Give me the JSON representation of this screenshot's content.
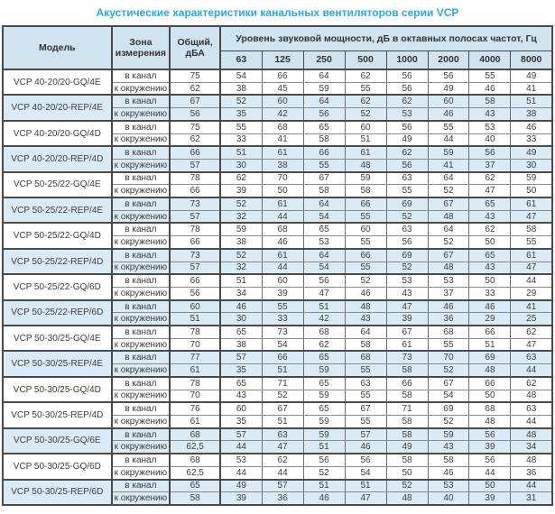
{
  "title": "Акустические характеристики канальных вентиляторов  серии VCP",
  "colors": {
    "title_accent": "#29a9e1",
    "header_bg": "#cfe3f1",
    "shaded_row_bg": "#d9ebf7",
    "border_dark": "#4a4a4a",
    "border_light": "#8b8b8b"
  },
  "table": {
    "header": {
      "model": "Модель",
      "zone": "Зона измерения",
      "total": "Общий, дБА",
      "octave_title": "Уровень звуковой мощности, дБ в октавных полосах частот, Гц",
      "frequencies": [
        "63",
        "125",
        "250",
        "500",
        "1000",
        "2000",
        "4000",
        "8000"
      ]
    },
    "zone_labels": {
      "duct": "в канал",
      "ambient": "к окружению"
    },
    "models": [
      {
        "name": "VCP 40-20/20-GQ/4E",
        "shaded": false,
        "rows": [
          {
            "zone": "в канал",
            "total": "75",
            "bands": [
              "54",
              "66",
              "64",
              "62",
              "56",
              "56",
              "55",
              "49"
            ]
          },
          {
            "zone": "к окружению",
            "total": "62",
            "bands": [
              "38",
              "45",
              "59",
              "55",
              "56",
              "49",
              "46",
              "41"
            ]
          }
        ]
      },
      {
        "name": "VCP 40-20/20-REP/4E",
        "shaded": true,
        "rows": [
          {
            "zone": "в канал",
            "total": "67",
            "bands": [
              "52",
              "60",
              "64",
              "62",
              "62",
              "60",
              "58",
              "51"
            ]
          },
          {
            "zone": "к окружению",
            "total": "56",
            "bands": [
              "35",
              "42",
              "56",
              "52",
              "53",
              "46",
              "43",
              "38"
            ]
          }
        ]
      },
      {
        "name": "VCP 40-20/20-GQ/4D",
        "shaded": false,
        "rows": [
          {
            "zone": "в канал",
            "total": "75",
            "bands": [
              "55",
              "68",
              "65",
              "60",
              "56",
              "55",
              "53",
              "46"
            ]
          },
          {
            "zone": "к окружению",
            "total": "62",
            "bands": [
              "33",
              "41",
              "58",
              "51",
              "49",
              "44",
              "40",
              "33"
            ]
          }
        ]
      },
      {
        "name": "VCP 40-20/20-REP/4D",
        "shaded": true,
        "rows": [
          {
            "zone": "в канал",
            "total": "66",
            "bands": [
              "51",
              "61",
              "66",
              "61",
              "62",
              "59",
              "56",
              "49"
            ]
          },
          {
            "zone": "к окружению",
            "total": "57",
            "bands": [
              "30",
              "38",
              "55",
              "48",
              "56",
              "41",
              "37",
              "30"
            ]
          }
        ]
      },
      {
        "name": "VCP 50-25/22-GQ/4E",
        "shaded": false,
        "rows": [
          {
            "zone": "в канал",
            "total": "78",
            "bands": [
              "62",
              "70",
              "67",
              "59",
              "63",
              "64",
              "62",
              "59"
            ]
          },
          {
            "zone": "к окружению",
            "total": "66",
            "bands": [
              "39",
              "50",
              "58",
              "58",
              "55",
              "52",
              "47",
              "50"
            ]
          }
        ]
      },
      {
        "name": "VCP 50-25/22-REP/4E",
        "shaded": true,
        "rows": [
          {
            "zone": "в канал",
            "total": "73",
            "bands": [
              "52",
              "61",
              "64",
              "66",
              "69",
              "67",
              "65",
              "61"
            ]
          },
          {
            "zone": "к окружению",
            "total": "57",
            "bands": [
              "32",
              "44",
              "54",
              "55",
              "52",
              "48",
              "43",
              "47"
            ]
          }
        ]
      },
      {
        "name": "VCP 50-25/22-GQ/4D",
        "shaded": false,
        "rows": [
          {
            "zone": "в канал",
            "total": "78",
            "bands": [
              "59",
              "68",
              "65",
              "60",
              "63",
              "64",
              "62",
              "58"
            ]
          },
          {
            "zone": "к окружению",
            "total": "66",
            "bands": [
              "38",
              "46",
              "53",
              "55",
              "56",
              "52",
              "50",
              "55"
            ]
          }
        ]
      },
      {
        "name": "VCP 50-25/22-REP/4D",
        "shaded": true,
        "rows": [
          {
            "zone": "в канал",
            "total": "73",
            "bands": [
              "52",
              "61",
              "64",
              "66",
              "69",
              "67",
              "65",
              "61"
            ]
          },
          {
            "zone": "к окружению",
            "total": "57",
            "bands": [
              "32",
              "44",
              "54",
              "55",
              "52",
              "48",
              "43",
              "47"
            ]
          }
        ]
      },
      {
        "name": "VCP 50-25/22-GQ/6D",
        "shaded": false,
        "rows": [
          {
            "zone": "в канал",
            "total": "66",
            "bands": [
              "51",
              "60",
              "56",
              "52",
              "53",
              "53",
              "50",
              "44"
            ]
          },
          {
            "zone": "к окружению",
            "total": "56",
            "bands": [
              "34",
              "39",
              "47",
              "46",
              "43",
              "37",
              "33",
              "29"
            ]
          }
        ]
      },
      {
        "name": "VCP 50-25/22-REP/6D",
        "shaded": true,
        "rows": [
          {
            "zone": "в канал",
            "total": "60",
            "bands": [
              "46",
              "55",
              "51",
              "48",
              "47",
              "46",
              "46",
              "41"
            ]
          },
          {
            "zone": "к окружению",
            "total": "51",
            "bands": [
              "30",
              "33",
              "42",
              "43",
              "39",
              "36",
              "29",
              "25"
            ]
          }
        ]
      },
      {
        "name": "VCP 50-30/25-GQ/4E",
        "shaded": false,
        "rows": [
          {
            "zone": "в канал",
            "total": "78",
            "bands": [
              "65",
              "73",
              "68",
              "64",
              "67",
              "68",
              "66",
              "62"
            ]
          },
          {
            "zone": "к окружению",
            "total": "70",
            "bands": [
              "38",
              "54",
              "62",
              "58",
              "61",
              "55",
              "51",
              "47"
            ]
          }
        ]
      },
      {
        "name": "VCP 50-30/25-REP/4E",
        "shaded": true,
        "rows": [
          {
            "zone": "в канал",
            "total": "77",
            "bands": [
              "57",
              "66",
              "65",
              "68",
              "73",
              "70",
              "69",
              "63"
            ]
          },
          {
            "zone": "к окружению",
            "total": "61",
            "bands": [
              "35",
              "51",
              "59",
              "55",
              "58",
              "52",
              "48",
              "44"
            ]
          }
        ]
      },
      {
        "name": "VCP 50-30/25-GQ/4D",
        "shaded": false,
        "rows": [
          {
            "zone": "в канал",
            "total": "78",
            "bands": [
              "65",
              "71",
              "65",
              "63",
              "66",
              "67",
              "66",
              "62"
            ]
          },
          {
            "zone": "к окружению",
            "total": "70",
            "bands": [
              "43",
              "52",
              "59",
              "55",
              "58",
              "54",
              "50",
              "48"
            ]
          }
        ]
      },
      {
        "name": "VCP 50-30/25-REP/4D",
        "shaded": false,
        "rows": [
          {
            "zone": "в канал",
            "total": "76",
            "bands": [
              "60",
              "67",
              "65",
              "67",
              "71",
              "69",
              "68",
              "63"
            ]
          },
          {
            "zone": "к окружению",
            "total": "61",
            "bands": [
              "35",
              "51",
              "59",
              "55",
              "58",
              "52",
              "48",
              "44"
            ]
          }
        ]
      },
      {
        "name": "VCP 50-30/25-GQ/6E",
        "shaded": true,
        "rows": [
          {
            "zone": "в канал",
            "total": "68",
            "bands": [
              "57",
              "63",
              "59",
              "57",
              "58",
              "59",
              "56",
              "48"
            ]
          },
          {
            "zone": "к окружению",
            "total": "62,5",
            "bands": [
              "44",
              "47",
              "51",
              "46",
              "49",
              "43",
              "39",
              "34"
            ]
          }
        ]
      },
      {
        "name": "VCP 50-30/25-GQ/6D",
        "shaded": false,
        "rows": [
          {
            "zone": "в канал",
            "total": "68",
            "bands": [
              "53",
              "62",
              "56",
              "56",
              "58",
              "58",
              "56",
              "48"
            ]
          },
          {
            "zone": "к окружению",
            "total": "62,5",
            "bands": [
              "44",
              "44",
              "52",
              "54",
              "50",
              "46",
              "44",
              "36"
            ]
          }
        ]
      },
      {
        "name": "VCP 50-30/25-REP/6D",
        "shaded": true,
        "rows": [
          {
            "zone": "в канал",
            "total": "65",
            "bands": [
              "49",
              "57",
              "51",
              "51",
              "52",
              "53",
              "50",
              "44"
            ]
          },
          {
            "zone": "к окружению",
            "total": "58",
            "bands": [
              "39",
              "36",
              "46",
              "47",
              "48",
              "40",
              "39",
              "31"
            ]
          }
        ]
      }
    ]
  }
}
